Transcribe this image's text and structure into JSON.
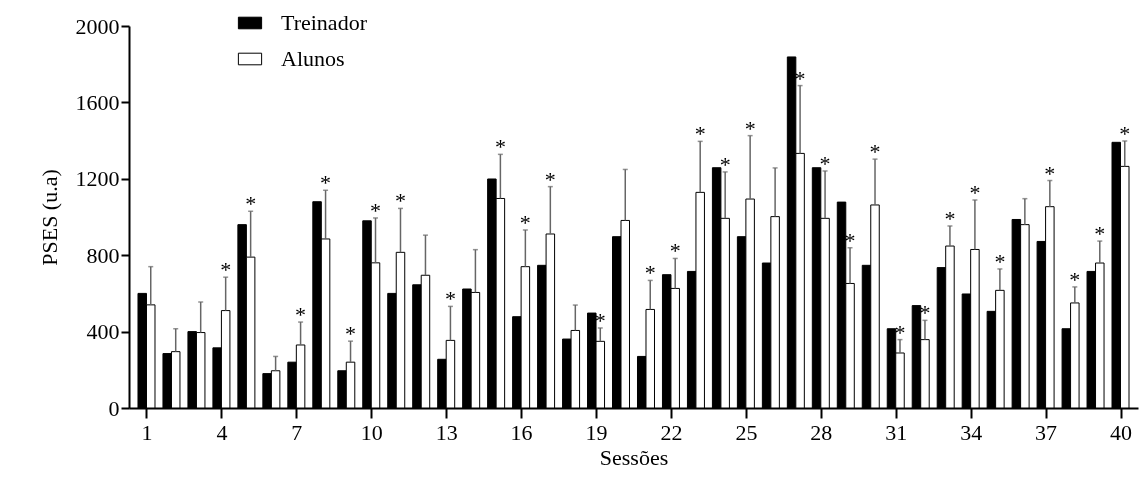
{
  "chart_data": {
    "type": "bar",
    "xlabel": "Sessões",
    "ylabel": "PSES (u.a)",
    "x": [
      1,
      2,
      3,
      4,
      5,
      6,
      7,
      8,
      9,
      10,
      11,
      12,
      13,
      14,
      15,
      16,
      17,
      18,
      19,
      20,
      21,
      22,
      23,
      24,
      25,
      26,
      27,
      28,
      29,
      30,
      31,
      32,
      33,
      34,
      35,
      36,
      37,
      38,
      39,
      40
    ],
    "xlim": [
      0.5,
      40.5
    ],
    "xticks": [
      1,
      4,
      7,
      10,
      13,
      16,
      19,
      22,
      25,
      28,
      31,
      34,
      37,
      40
    ],
    "ylim": [
      0,
      2000
    ],
    "yticks": [
      0,
      400,
      800,
      1200,
      1600,
      2000
    ],
    "legend": "top left",
    "grid": false,
    "series": [
      {
        "name": "Treinador",
        "color": "#000000",
        "values": [
          600,
          285,
          400,
          315,
          960,
          180,
          240,
          1080,
          195,
          980,
          600,
          645,
          255,
          623,
          1199,
          478,
          747,
          361,
          497,
          897,
          270,
          698,
          715,
          1258,
          897,
          759,
          1838,
          1258,
          1078,
          747,
          415,
          536,
          735,
          597,
          506,
          987,
          872,
          415,
          715,
          1391
        ]
      },
      {
        "name": "Alunos",
        "color": "#ffffff",
        "values": [
          540,
          295,
          395,
          510,
          790,
          195,
          330,
          885,
          240,
          760,
          815,
          695,
          354,
          605,
          1097,
          740,
          911,
          406,
          349,
          982,
          516,
          626,
          1129,
          993,
          1094,
          1002,
          1333,
          993,
          652,
          1063,
          288,
          358,
          848,
          830,
          616,
          960,
          1054,
          550,
          759,
          1265
        ],
        "errors": [
          [
            540,
            740
          ],
          [
            295,
            415
          ],
          [
            395,
            555
          ],
          [
            510,
            685
          ],
          [
            790,
            1030
          ],
          [
            195,
            270
          ],
          [
            330,
            450
          ],
          [
            885,
            1140
          ],
          [
            240,
            350
          ],
          [
            760,
            995
          ],
          [
            815,
            1045
          ],
          [
            695,
            905
          ],
          [
            354,
            532
          ],
          [
            605,
            829
          ],
          [
            1097,
            1328
          ],
          [
            740,
            932
          ],
          [
            911,
            1159
          ],
          [
            406,
            539
          ],
          [
            349,
            419
          ],
          [
            982,
            1249
          ],
          [
            516,
            668
          ],
          [
            626,
            783
          ],
          [
            1129,
            1396
          ],
          [
            993,
            1236
          ],
          [
            1094,
            1426
          ],
          [
            1002,
            1257
          ],
          [
            1333,
            1688
          ],
          [
            993,
            1241
          ],
          [
            652,
            839
          ],
          [
            1063,
            1303
          ],
          [
            288,
            358
          ],
          [
            358,
            459
          ],
          [
            848,
            953
          ],
          [
            830,
            1089
          ],
          [
            616,
            728
          ],
          [
            960,
            1096
          ],
          [
            1054,
            1191
          ],
          [
            550,
            634
          ],
          [
            759,
            874
          ],
          [
            1265,
            1398
          ]
        ]
      }
    ],
    "annotations": [
      {
        "text": "*",
        "x": 4,
        "y": 685
      },
      {
        "text": "*",
        "x": 5,
        "y": 1030
      },
      {
        "text": "*",
        "x": 7,
        "y": 450
      },
      {
        "text": "*",
        "x": 8,
        "y": 1140
      },
      {
        "text": "*",
        "x": 9,
        "y": 350
      },
      {
        "text": "*",
        "x": 10,
        "y": 995
      },
      {
        "text": "*",
        "x": 11,
        "y": 1045
      },
      {
        "text": "*",
        "x": 13,
        "y": 532
      },
      {
        "text": "*",
        "x": 15,
        "y": 1328
      },
      {
        "text": "*",
        "x": 16,
        "y": 932
      },
      {
        "text": "*",
        "x": 17,
        "y": 1159
      },
      {
        "text": "*",
        "x": 19,
        "y": 419
      },
      {
        "text": "*",
        "x": 21,
        "y": 668
      },
      {
        "text": "*",
        "x": 22,
        "y": 783
      },
      {
        "text": "*",
        "x": 23,
        "y": 1396
      },
      {
        "text": "*",
        "x": 24,
        "y": 1236
      },
      {
        "text": "*",
        "x": 25,
        "y": 1426
      },
      {
        "text": "*",
        "x": 27,
        "y": 1688
      },
      {
        "text": "*",
        "x": 28,
        "y": 1241
      },
      {
        "text": "*",
        "x": 29,
        "y": 839
      },
      {
        "text": "*",
        "x": 30,
        "y": 1303
      },
      {
        "text": "*",
        "x": 31,
        "y": 358
      },
      {
        "text": "*",
        "x": 32,
        "y": 459
      },
      {
        "text": "*",
        "x": 33,
        "y": 953
      },
      {
        "text": "*",
        "x": 34,
        "y": 1089
      },
      {
        "text": "*",
        "x": 35,
        "y": 728
      },
      {
        "text": "*",
        "x": 37,
        "y": 1191
      },
      {
        "text": "*",
        "x": 38,
        "y": 634
      },
      {
        "text": "*",
        "x": 39,
        "y": 874
      },
      {
        "text": "*",
        "x": 40,
        "y": 1398
      }
    ]
  }
}
